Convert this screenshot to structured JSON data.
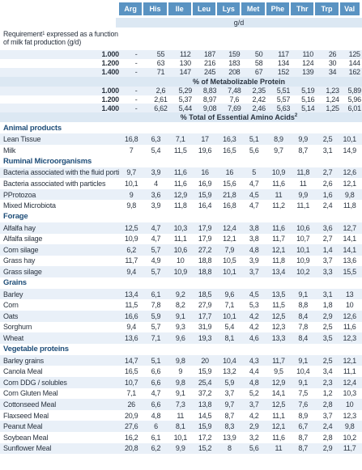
{
  "columns": [
    "Arg",
    "His",
    "Ile",
    "Leu",
    "Lys",
    "Met",
    "Phe",
    "Thr",
    "Trp",
    "Val"
  ],
  "unit": "g/d",
  "requirement_label": "Requirement",
  "requirement_sup": "1",
  "requirement_label_rest": " expressed as a function of milk fat production (g/d)",
  "requirements": [
    {
      "label": "1.000",
      "values": [
        "-",
        "55",
        "112",
        "187",
        "159",
        "50",
        "117",
        "110",
        "26",
        "125"
      ]
    },
    {
      "label": "1.200",
      "values": [
        "-",
        "63",
        "130",
        "216",
        "183",
        "58",
        "134",
        "124",
        "30",
        "144"
      ]
    },
    {
      "label": "1.400",
      "values": [
        "-",
        "71",
        "147",
        "245",
        "208",
        "67",
        "152",
        "139",
        "34",
        "162"
      ]
    }
  ],
  "metabolizable_title": "% of Metabolizable Protein",
  "metabolizable": [
    {
      "label": "1.000",
      "values": [
        "-",
        "2,6",
        "5,29",
        "8,83",
        "7,48",
        "2,35",
        "5,51",
        "5,19",
        "1,23",
        "5,89"
      ]
    },
    {
      "label": "1.200",
      "values": [
        "-",
        "2,61",
        "5,37",
        "8,97",
        "7,6",
        "2,42",
        "5,57",
        "5,16",
        "1,24",
        "5,96"
      ]
    },
    {
      "label": "1.400",
      "values": [
        "-",
        "6,62",
        "5,44",
        "9,08",
        "7,69",
        "2,46",
        "5,63",
        "5,14",
        "1,25",
        "6,01"
      ]
    }
  ],
  "eaa_title": "% Total of Essential Amino Acids",
  "eaa_sup": "2",
  "sections": [
    {
      "title": "Animal products",
      "rows": [
        {
          "label": "Lean Tissue",
          "values": [
            "16,8",
            "6,3",
            "7,1",
            "17",
            "16,3",
            "5,1",
            "8,9",
            "9,9",
            "2,5",
            "10,1"
          ]
        },
        {
          "label": "Milk",
          "values": [
            "7",
            "5,4",
            "11,5",
            "19,6",
            "16,5",
            "5,6",
            "9,7",
            "8,7",
            "3,1",
            "14,9"
          ]
        }
      ]
    },
    {
      "title": "Ruminal Microorganisms",
      "rows": [
        {
          "label": "Bacteria associated with the fluid portion",
          "values": [
            "9,7",
            "3,9",
            "11,6",
            "16",
            "16",
            "5",
            "10,9",
            "11,8",
            "2,7",
            "12,6"
          ]
        },
        {
          "label": "Bacteria associated with particles",
          "values": [
            "10,1",
            "4",
            "11,6",
            "16,9",
            "15,6",
            "4,7",
            "11,6",
            "11",
            "2,6",
            "12,1"
          ]
        },
        {
          "label": "PProtozoa",
          "values": [
            "9",
            "3,6",
            "12,9",
            "15,9",
            "21,8",
            "4,5",
            "11",
            "9,9",
            "1,6",
            "9,8"
          ]
        },
        {
          "label": "Mixed Microbiota",
          "values": [
            "9,8",
            "3,9",
            "11,8",
            "16,4",
            "16,8",
            "4,7",
            "11,2",
            "11,1",
            "2,4",
            "11,8"
          ]
        }
      ]
    },
    {
      "title": "Forage",
      "rows": [
        {
          "label": "Alfalfa hay",
          "values": [
            "12,5",
            "4,7",
            "10,3",
            "17,9",
            "12,4",
            "3,8",
            "11,6",
            "10,6",
            "3,6",
            "12,7"
          ]
        },
        {
          "label": "Alfalfa silage",
          "values": [
            "10,9",
            "4,7",
            "11,1",
            "17,9",
            "12,1",
            "3,8",
            "11,7",
            "10,7",
            "2,7",
            "14,1"
          ]
        },
        {
          "label": "Corn silage",
          "values": [
            "6,2",
            "5,7",
            "10,6",
            "27,2",
            "7,9",
            "4,8",
            "12,1",
            "10,1",
            "1,4",
            "14,1"
          ]
        },
        {
          "label": "Grass hay",
          "values": [
            "11,7",
            "4,9",
            "10",
            "18,8",
            "10,5",
            "3,9",
            "11,8",
            "10,9",
            "3,7",
            "13,6"
          ]
        },
        {
          "label": "Grass silage",
          "values": [
            "9,4",
            "5,7",
            "10,9",
            "18,8",
            "10,1",
            "3,7",
            "13,4",
            "10,2",
            "3,3",
            "15,5"
          ]
        }
      ]
    },
    {
      "title": "Grains",
      "rows": [
        {
          "label": "Barley",
          "values": [
            "13,4",
            "6,1",
            "9,2",
            "18,5",
            "9,6",
            "4,5",
            "13,5",
            "9,1",
            "3,1",
            "13"
          ]
        },
        {
          "label": "Corn",
          "values": [
            "11,5",
            "7,8",
            "8,2",
            "27,9",
            "7,1",
            "5,3",
            "11,5",
            "8,8",
            "1,8",
            "10"
          ]
        },
        {
          "label": "Oats",
          "values": [
            "16,6",
            "5,9",
            "9,1",
            "17,7",
            "10,1",
            "4,2",
            "12,5",
            "8,4",
            "2,9",
            "12,6"
          ]
        },
        {
          "label": "Sorghum",
          "values": [
            "9,4",
            "5,7",
            "9,3",
            "31,9",
            "5,4",
            "4,2",
            "12,3",
            "7,8",
            "2,5",
            "11,6"
          ]
        },
        {
          "label": "Wheat",
          "values": [
            "13,6",
            "7,1",
            "9,6",
            "19,3",
            "8,1",
            "4,6",
            "13,3",
            "8,4",
            "3,5",
            "12,3"
          ]
        }
      ]
    },
    {
      "title": "Vegetable proteins",
      "rows": [
        {
          "label": "Barley grains",
          "values": [
            "14,7",
            "5,1",
            "9,8",
            "20",
            "10,4",
            "4,3",
            "11,7",
            "9,1",
            "2,5",
            "12,1"
          ]
        },
        {
          "label": "Canola Meal",
          "values": [
            "16,5",
            "6,6",
            "9",
            "15,9",
            "13,2",
            "4,4",
            "9,5",
            "10,4",
            "3,4",
            "11,1"
          ]
        },
        {
          "label": "Corn DDG / solubles",
          "values": [
            "10,7",
            "6,6",
            "9,8",
            "25,4",
            "5,9",
            "4,8",
            "12,9",
            "9,1",
            "2,3",
            "12,4"
          ]
        },
        {
          "label": "Corn Gluten Meal",
          "values": [
            "7,1",
            "4,7",
            "9,1",
            "37,2",
            "3,7",
            "5,2",
            "14,1",
            "7,5",
            "1,2",
            "10,3"
          ]
        },
        {
          "label": "Cottonseed Meal",
          "values": [
            "26",
            "6,6",
            "7,3",
            "13,8",
            "9,7",
            "3,7",
            "12,5",
            "7,6",
            "2,8",
            "10"
          ]
        },
        {
          "label": "Flaxseed Meal",
          "values": [
            "20,9",
            "4,8",
            "11",
            "14,5",
            "8,7",
            "4,2",
            "11,1",
            "8,9",
            "3,7",
            "12,3"
          ]
        },
        {
          "label": "Peanut Meal",
          "values": [
            "27,6",
            "6",
            "8,1",
            "15,9",
            "8,3",
            "2,9",
            "12,1",
            "6,7",
            "2,4",
            "9,8"
          ]
        },
        {
          "label": "Soybean Meal",
          "values": [
            "16,2",
            "6,1",
            "10,1",
            "17,2",
            "13,9",
            "3,2",
            "11,6",
            "8,7",
            "2,8",
            "10,2"
          ]
        },
        {
          "label": "Sunflower Meal",
          "values": [
            "20,8",
            "6,2",
            "9,9",
            "15,2",
            "8",
            "5,6",
            "11",
            "8,7",
            "2,9",
            "11,7"
          ]
        }
      ]
    }
  ]
}
